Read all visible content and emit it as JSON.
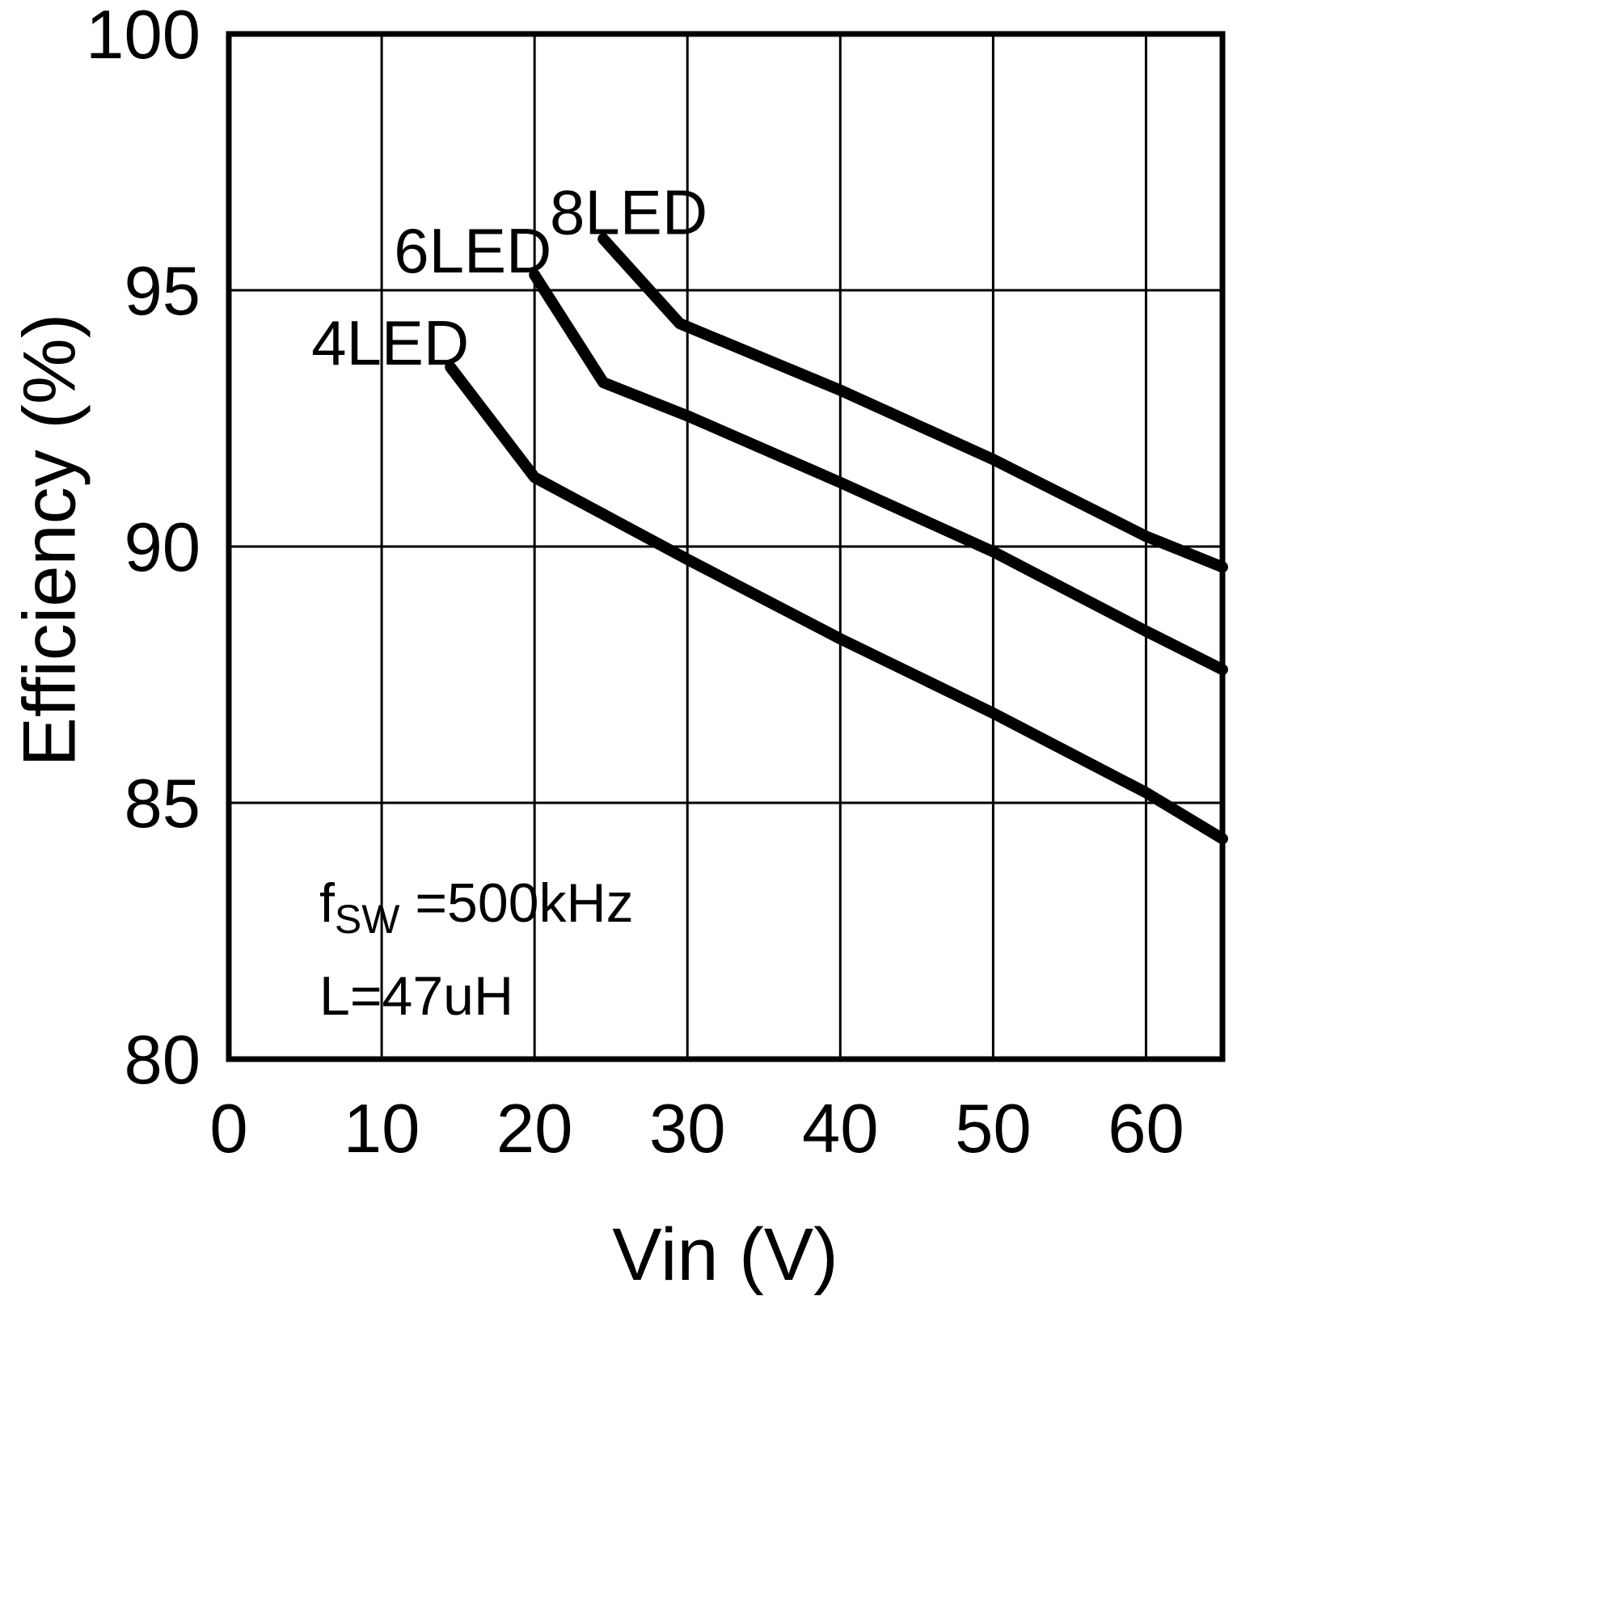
{
  "chart_data": {
    "type": "line",
    "title": "",
    "xlabel": "Vin (V)",
    "ylabel": "Efficiency (%)",
    "xlim": [
      0,
      65
    ],
    "ylim": [
      80,
      100
    ],
    "xticks": [
      0,
      10,
      20,
      30,
      40,
      50,
      60
    ],
    "yticks": [
      80,
      85,
      90,
      95,
      100
    ],
    "grid": true,
    "legend_position": "inline-labels",
    "annotation": {
      "line1_f": "f",
      "line1_sub": "SW",
      "line1_rest": " =500kHz",
      "line2": "L=47uH"
    },
    "colors": {
      "line": "#000000",
      "grid": "#000000",
      "border": "#000000",
      "background": "#ffffff"
    },
    "series": [
      {
        "name": "8LED",
        "label_pos": {
          "x": 21.0,
          "y": 96.1
        },
        "points": [
          [
            24.5,
            96.0
          ],
          [
            29.5,
            94.35
          ],
          [
            40,
            93.05
          ],
          [
            50,
            91.7
          ],
          [
            60,
            90.2
          ],
          [
            65,
            89.6
          ]
        ]
      },
      {
        "name": "6LED",
        "label_pos": {
          "x": 10.8,
          "y": 95.35
        },
        "points": [
          [
            20,
            95.3
          ],
          [
            24.5,
            93.2
          ],
          [
            30,
            92.55
          ],
          [
            40,
            91.25
          ],
          [
            50,
            89.9
          ],
          [
            60,
            88.35
          ],
          [
            65,
            87.6
          ]
        ]
      },
      {
        "name": "4LED",
        "label_pos": {
          "x": 5.4,
          "y": 93.55
        },
        "points": [
          [
            14.5,
            93.5
          ],
          [
            20,
            91.35
          ],
          [
            30,
            89.75
          ],
          [
            40,
            88.2
          ],
          [
            50,
            86.75
          ],
          [
            60,
            85.2
          ],
          [
            65,
            84.3
          ]
        ]
      }
    ]
  }
}
